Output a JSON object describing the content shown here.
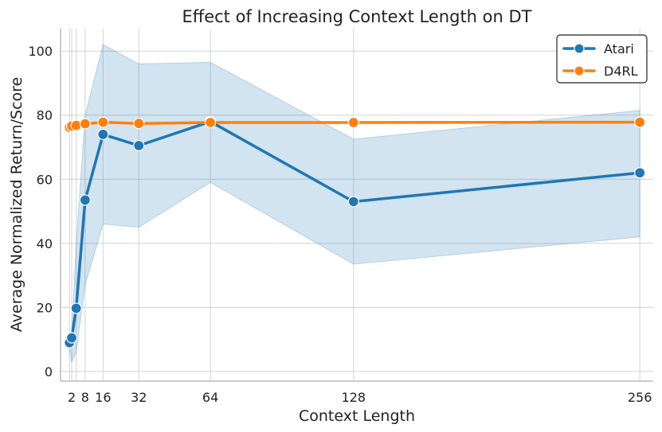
{
  "chart_data": {
    "type": "line",
    "title": "Effect of Increasing Context Length on DT",
    "xlabel": "Context Length",
    "ylabel": "Average Normalized Return/Score",
    "xlim": [
      -3,
      262
    ],
    "ylim": [
      -3,
      107
    ],
    "xticks": [
      2,
      8,
      16,
      32,
      64,
      128,
      256
    ],
    "xtick_labels": [
      "2",
      "8",
      "16",
      "32",
      "64",
      "128",
      "256"
    ],
    "yticks": [
      0,
      20,
      40,
      60,
      80,
      100
    ],
    "ytick_labels": [
      "0",
      "20",
      "40",
      "60",
      "80",
      "100"
    ],
    "grid": true,
    "legend_position": "top-right",
    "series": [
      {
        "name": "Atari",
        "color": "#1f77b4",
        "x": [
          1,
          2,
          4,
          8,
          16,
          32,
          64,
          128,
          256
        ],
        "values": [
          9,
          10.5,
          19.7,
          53.5,
          74,
          70.5,
          78,
          53,
          62
        ],
        "band_upper": [
          10,
          12,
          40,
          80,
          102,
          96,
          96.5,
          72.5,
          81.5
        ],
        "band_lower": [
          7,
          3,
          6,
          27,
          46,
          45,
          59,
          33.5,
          42
        ]
      },
      {
        "name": "D4RL",
        "color": "#ff7f0e",
        "x": [
          1,
          2,
          4,
          8,
          16,
          32,
          64,
          128,
          256
        ],
        "values": [
          76.2,
          76.6,
          76.8,
          77.3,
          77.8,
          77.4,
          77.7,
          77.7,
          77.8
        ]
      }
    ]
  }
}
